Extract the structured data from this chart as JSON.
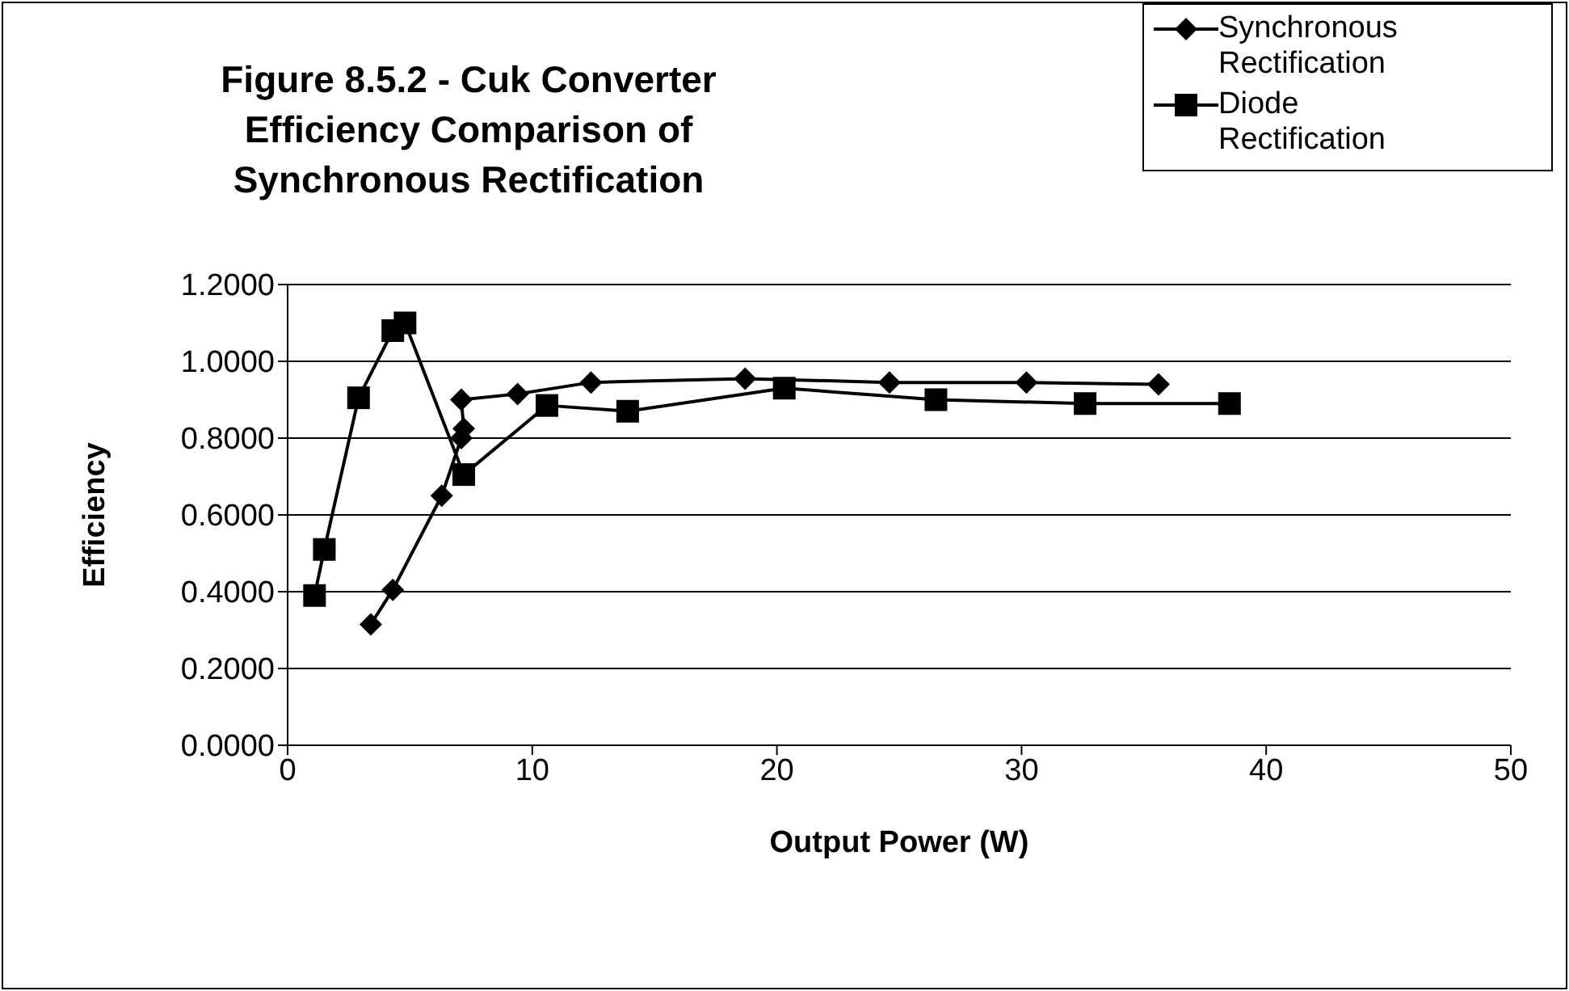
{
  "chart_data": {
    "type": "line",
    "title": "Figure 8.5.2 - Cuk Converter Efficiency Comparison of Synchronous Rectification",
    "xlabel": "Output Power (W)",
    "ylabel": "Efficiency",
    "series": [
      {
        "name": "Synchronous Rectification",
        "color": "#000000",
        "marker": "diamond",
        "x": [
          3.4,
          4.3,
          6.3,
          7.1,
          7.2,
          7.1,
          9.4,
          12.4,
          18.7,
          24.6,
          30.2,
          35.6
        ],
        "values": [
          0.315,
          0.405,
          0.65,
          0.8,
          0.825,
          0.9,
          0.915,
          0.945,
          0.955,
          0.945,
          0.945,
          0.94
        ]
      },
      {
        "name": "Diode Rectification",
        "color": "#000000",
        "marker": "square",
        "x": [
          1.1,
          1.5,
          2.9,
          4.3,
          4.8,
          7.2,
          10.6,
          13.9,
          20.3,
          26.5,
          32.6,
          38.5
        ],
        "values": [
          0.39,
          0.51,
          0.905,
          1.08,
          1.1,
          0.705,
          0.885,
          0.87,
          0.93,
          0.9,
          0.89,
          0.89
        ]
      }
    ],
    "xlim": [
      0,
      50
    ],
    "xticks": [
      0,
      10,
      20,
      30,
      40,
      50
    ],
    "ylim": [
      0,
      1.2
    ],
    "yticks": [
      {
        "value": 0,
        "label": "0.0000"
      },
      {
        "value": 0.2,
        "label": "0.2000"
      },
      {
        "value": 0.4,
        "label": "0.4000"
      },
      {
        "value": 0.6,
        "label": "0.6000"
      },
      {
        "value": 0.8,
        "label": "0.8000"
      },
      {
        "value": 1,
        "label": "1.0000"
      },
      {
        "value": 1.2,
        "label": "1.2000"
      }
    ],
    "grid": "y",
    "legend": "top right",
    "line_style": "solid"
  }
}
